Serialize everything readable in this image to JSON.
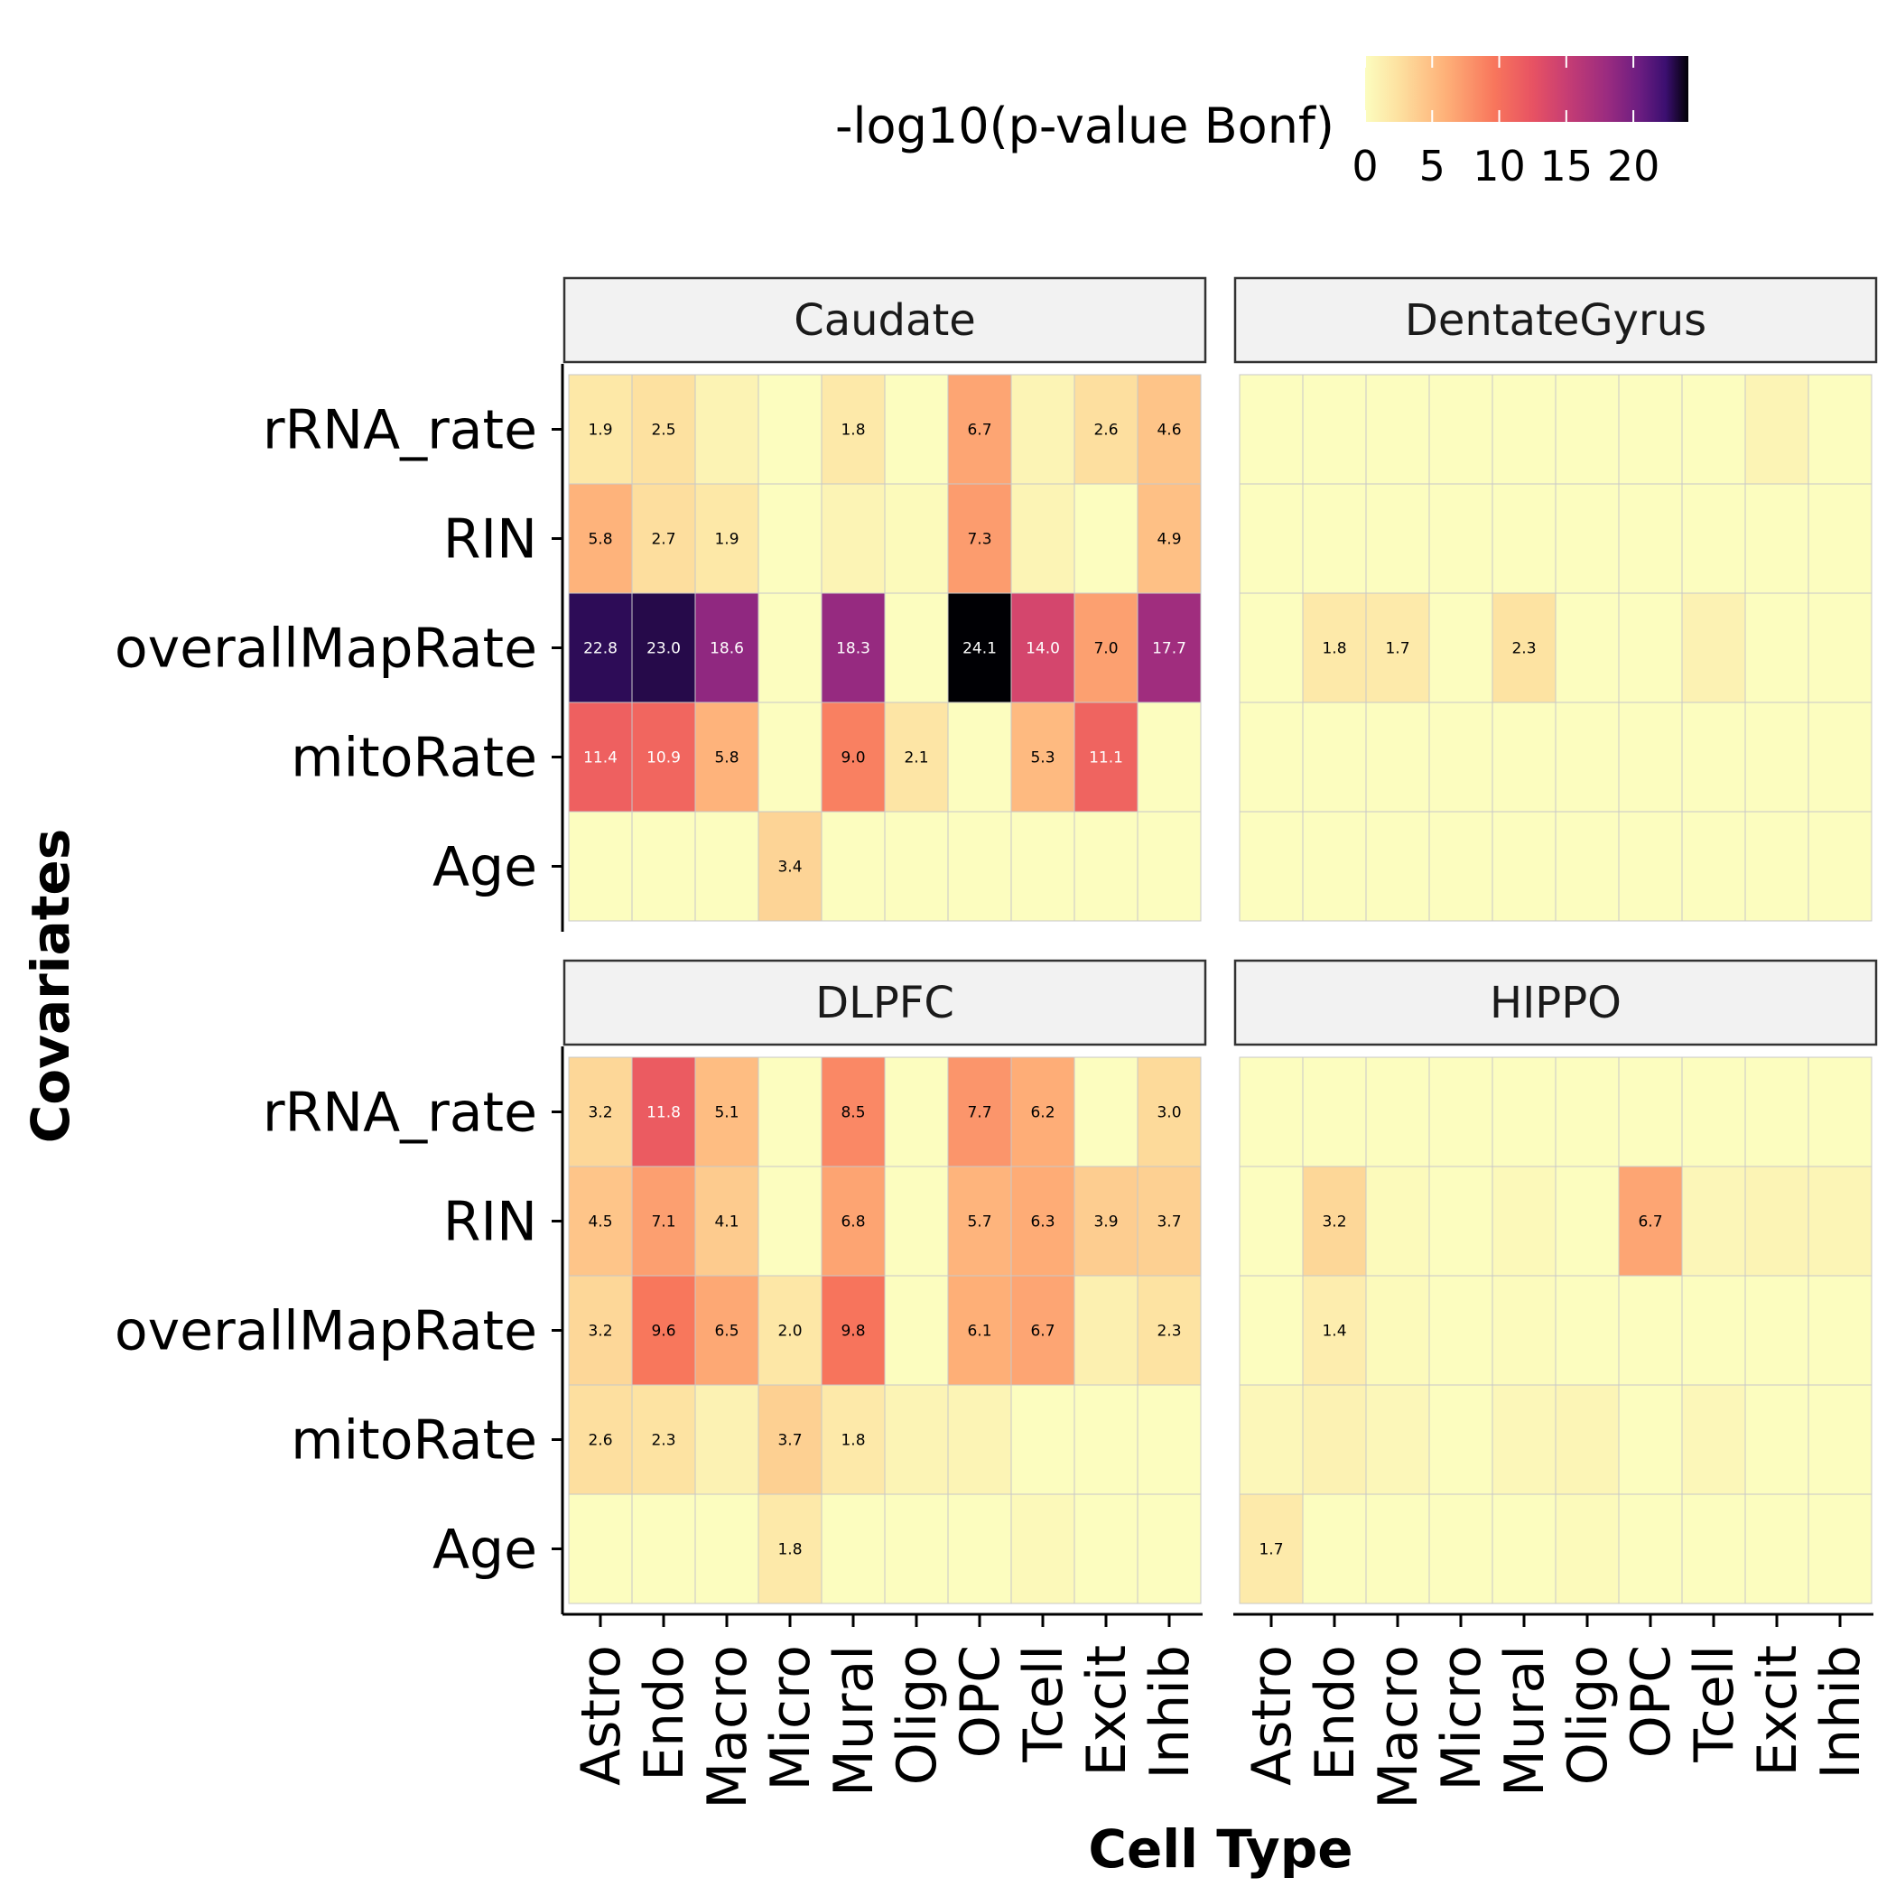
{
  "chart_data": {
    "type": "heatmap",
    "xlabel": "Cell Type",
    "ylabel": "Covariates",
    "legend": {
      "title": "-log10(p-value Bonf)",
      "ticks": [
        0,
        5,
        10,
        15,
        20
      ],
      "range": [
        0,
        24.1
      ],
      "palette": "magma",
      "placement": "top"
    },
    "rows": [
      "rRNA_rate",
      "RIN",
      "overallMapRate",
      "mitoRate",
      "Age"
    ],
    "columns": [
      "Astro",
      "Endo",
      "Macro",
      "Micro",
      "Mural",
      "Oligo",
      "OPC",
      "Tcell",
      "Excit",
      "Inhib"
    ],
    "label_threshold": 1.3,
    "panels": [
      {
        "name": "Caudate",
        "values": [
          [
            1.9,
            2.5,
            0.9,
            0.0,
            1.8,
            0.0,
            6.7,
            0.8,
            2.6,
            4.6
          ],
          [
            5.8,
            2.7,
            1.9,
            0.0,
            0.8,
            0.3,
            7.3,
            0.8,
            0.0,
            4.9
          ],
          [
            22.8,
            23.0,
            18.6,
            0.0,
            18.3,
            0.0,
            24.1,
            14.0,
            7.0,
            17.7
          ],
          [
            11.4,
            10.9,
            5.8,
            0.0,
            9.0,
            2.1,
            0.0,
            5.3,
            11.1,
            0.0
          ],
          [
            0.0,
            0.0,
            0.0,
            3.4,
            0.0,
            0.0,
            0.0,
            0.0,
            0.0,
            0.0
          ]
        ]
      },
      {
        "name": "DentateGyrus",
        "values": [
          [
            0.0,
            0.0,
            0.0,
            0.0,
            0.0,
            0.0,
            0.0,
            0.0,
            0.8,
            0.0
          ],
          [
            0.0,
            0.0,
            0.0,
            0.0,
            0.0,
            0.0,
            0.0,
            0.0,
            0.0,
            0.0
          ],
          [
            0.0,
            1.8,
            1.7,
            0.0,
            2.3,
            0.0,
            0.0,
            1.0,
            0.0,
            0.0
          ],
          [
            0.0,
            0.0,
            0.0,
            0.0,
            0.0,
            0.0,
            0.0,
            0.0,
            0.0,
            0.0
          ],
          [
            0.0,
            0.0,
            0.0,
            0.0,
            0.0,
            0.0,
            0.0,
            0.0,
            0.0,
            0.0
          ]
        ]
      },
      {
        "name": "DLPFC",
        "values": [
          [
            3.2,
            11.8,
            5.1,
            0.0,
            8.5,
            0.0,
            7.7,
            6.2,
            0.0,
            3.0
          ],
          [
            4.5,
            7.1,
            4.1,
            0.0,
            6.8,
            0.0,
            5.7,
            6.3,
            3.9,
            3.7
          ],
          [
            3.2,
            9.6,
            6.5,
            2.0,
            9.8,
            0.0,
            6.1,
            6.7,
            1.2,
            2.3
          ],
          [
            2.6,
            2.3,
            1.0,
            3.7,
            1.8,
            0.8,
            0.8,
            0.0,
            0.0,
            0.0
          ],
          [
            0.0,
            0.0,
            0.0,
            1.8,
            0.0,
            0.0,
            0.0,
            0.4,
            0.0,
            0.0
          ]
        ]
      },
      {
        "name": "HIPPO",
        "values": [
          [
            0.0,
            0.0,
            0.0,
            0.0,
            0.0,
            0.0,
            0.0,
            0.0,
            0.0,
            0.0
          ],
          [
            0.0,
            3.2,
            0.3,
            0.0,
            0.4,
            0.0,
            6.7,
            0.6,
            0.8,
            0.7
          ],
          [
            0.0,
            1.4,
            0.3,
            0.0,
            0.2,
            0.0,
            0.0,
            0.0,
            0.0,
            0.0
          ],
          [
            0.5,
            1.0,
            0.5,
            0.0,
            0.5,
            0.7,
            0.0,
            0.5,
            0.0,
            0.0
          ],
          [
            1.7,
            0.0,
            0.0,
            0.0,
            0.0,
            0.3,
            0.0,
            0.0,
            0.0,
            0.0
          ]
        ]
      }
    ]
  }
}
